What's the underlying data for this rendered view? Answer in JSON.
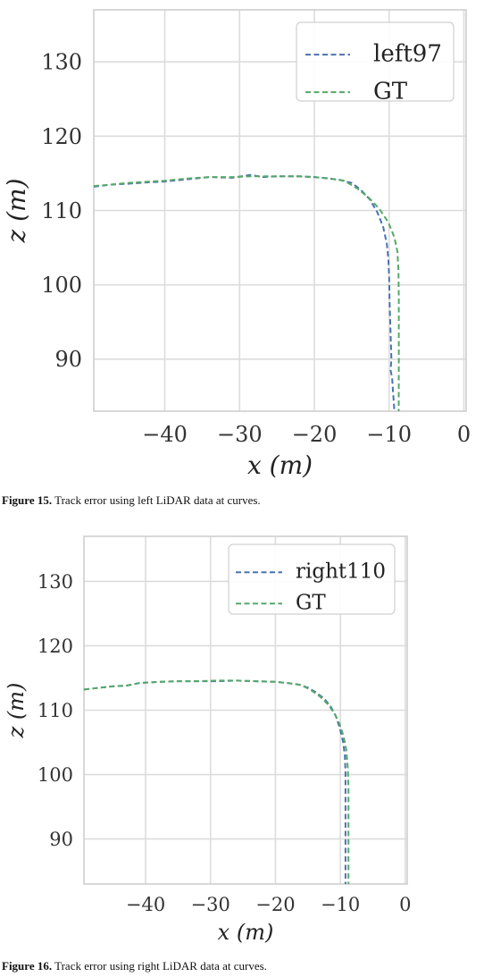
{
  "chart_data": [
    {
      "type": "line",
      "xlabel": "x (m)",
      "ylabel": "z (m)",
      "xlim": [
        -49.5,
        0.3
      ],
      "ylim": [
        83,
        137
      ],
      "xticks": [
        -40,
        -30,
        -20,
        -10,
        0
      ],
      "xtick_labels": [
        "−40",
        "−30",
        "−20",
        "−10",
        "0"
      ],
      "yticks": [
        90,
        100,
        110,
        120,
        130
      ],
      "ytick_labels": [
        "90",
        "100",
        "110",
        "120",
        "130"
      ],
      "grid": true,
      "legend_position": "top-right",
      "series": [
        {
          "name": "left97",
          "color": "#4c72b0",
          "x": [
            -49.5,
            -47,
            -45,
            -42,
            -40,
            -37,
            -34,
            -31,
            -28.5,
            -27,
            -25,
            -22,
            -20,
            -18,
            -16.5,
            -15,
            -13.8,
            -12.6,
            -11.6,
            -10.8,
            -10.3,
            -10.1,
            -10.0,
            -9.95,
            -9.85,
            -9.75,
            -9.7,
            -9.8,
            -9.6,
            -9.5,
            -9.4,
            -9.3
          ],
          "y": [
            113.2,
            113.5,
            113.6,
            113.8,
            113.9,
            114.2,
            114.5,
            114.4,
            114.8,
            114.5,
            114.6,
            114.6,
            114.5,
            114.3,
            114.1,
            113.7,
            112.8,
            111.5,
            109.8,
            107.8,
            105.5,
            103.5,
            101,
            98,
            95,
            92,
            90,
            88.5,
            87.5,
            86,
            84.5,
            83
          ]
        },
        {
          "name": "GT",
          "color": "#55a868",
          "x": [
            -49.5,
            -47,
            -45,
            -42,
            -40,
            -37,
            -34,
            -31,
            -28.5,
            -27,
            -25,
            -22,
            -20,
            -18,
            -16,
            -14.3,
            -12.8,
            -11.3,
            -10.1,
            -9.3,
            -8.9,
            -8.75,
            -8.7,
            -8.7,
            -8.7,
            -8.72
          ],
          "y": [
            113.3,
            113.5,
            113.7,
            113.9,
            114.0,
            114.3,
            114.5,
            114.5,
            114.6,
            114.6,
            114.6,
            114.6,
            114.5,
            114.3,
            114.0,
            113.0,
            111.8,
            110.2,
            108.4,
            106.4,
            104.5,
            102,
            98,
            94,
            90,
            83
          ]
        }
      ]
    },
    {
      "type": "line",
      "xlabel": "x (m)",
      "ylabel": "z (m)",
      "xlim": [
        -49.5,
        0.3
      ],
      "ylim": [
        83,
        137
      ],
      "xticks": [
        -40,
        -30,
        -20,
        -10,
        0
      ],
      "xtick_labels": [
        "−40",
        "−30",
        "−20",
        "−10",
        "0"
      ],
      "yticks": [
        90,
        100,
        110,
        120,
        130
      ],
      "ytick_labels": [
        "90",
        "100",
        "110",
        "120",
        "130"
      ],
      "grid": true,
      "legend_position": "top-right",
      "series": [
        {
          "name": "right110",
          "color": "#4c72b0",
          "x": [
            -49.5,
            -47,
            -45,
            -43,
            -41,
            -38,
            -35,
            -32,
            -29,
            -26,
            -23,
            -20,
            -18,
            -16.5,
            -15,
            -13.8,
            -12.5,
            -11.5,
            -10.7,
            -10.1,
            -9.6,
            -9.3,
            -9.2,
            -9.2,
            -9.2,
            -9.2
          ],
          "y": [
            113.2,
            113.5,
            113.7,
            113.8,
            114.2,
            114.4,
            114.5,
            114.5,
            114.5,
            114.6,
            114.5,
            114.4,
            114.2,
            114.0,
            113.5,
            112.8,
            111.8,
            110.6,
            109.1,
            107.3,
            105.2,
            103,
            100,
            95,
            90,
            83
          ]
        },
        {
          "name": "GT",
          "color": "#55a868",
          "x": [
            -49.5,
            -47,
            -45,
            -43,
            -41,
            -38,
            -35,
            -32,
            -29,
            -26,
            -23,
            -20,
            -18,
            -16,
            -14.5,
            -13.1,
            -11.9,
            -10.9,
            -10.1,
            -9.5,
            -9.1,
            -8.85,
            -8.75,
            -8.75,
            -8.75,
            -8.75
          ],
          "y": [
            113.2,
            113.5,
            113.7,
            113.8,
            114.2,
            114.4,
            114.5,
            114.5,
            114.6,
            114.6,
            114.5,
            114.4,
            114.2,
            113.9,
            113.1,
            112.1,
            110.9,
            109.5,
            107.8,
            105.9,
            103.9,
            101,
            98,
            94,
            90,
            83
          ]
        }
      ]
    }
  ],
  "captions": [
    {
      "label": "Figure 15.",
      "text": " Track error using left LiDAR data at curves."
    },
    {
      "label": "Figure 16.",
      "text": " Track error using right LiDAR data at curves."
    }
  ]
}
